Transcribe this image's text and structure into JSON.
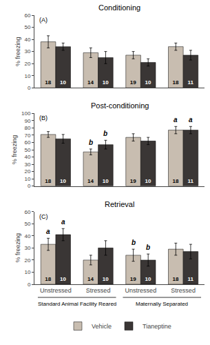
{
  "chart_data": [
    {
      "type": "bar",
      "title": "Conditioning",
      "annotations": [
        "(A)"
      ],
      "categories": [
        "Unstressed",
        "Stressed",
        "Unstressed",
        "Stressed"
      ],
      "ylabel": "% freezing",
      "ylim": [
        0,
        60
      ],
      "yticks": [
        0,
        10,
        20,
        30,
        40,
        50,
        60
      ],
      "grid": false,
      "tick_labels": "y",
      "series": [
        {
          "name": "Vehicle",
          "color": "#c8bdb0",
          "values": [
            38,
            29,
            27,
            34
          ],
          "errors": [
            5,
            4,
            3,
            3
          ],
          "n": [
            18,
            14,
            19,
            18
          ]
        },
        {
          "name": "Tianeptine",
          "color": "#3a3635",
          "values": [
            34,
            25,
            21,
            27
          ],
          "errors": [
            3,
            5,
            3,
            4
          ],
          "n": [
            10,
            10,
            10,
            11
          ]
        }
      ]
    },
    {
      "type": "bar",
      "title": "Post-conditioning",
      "annotations": [
        "(B)"
      ],
      "categories": [
        "Unstressed",
        "Stressed",
        "Unstressed",
        "Stressed"
      ],
      "ylabel": "% freezing",
      "ylim": [
        0,
        100
      ],
      "yticks": [
        0,
        10,
        20,
        30,
        40,
        50,
        60,
        70,
        80,
        90,
        100
      ],
      "grid": false,
      "tick_labels": "y",
      "series": [
        {
          "name": "Vehicle",
          "color": "#c8bdb0",
          "values": [
            71,
            47,
            67,
            77
          ],
          "errors": [
            4,
            4,
            5,
            5
          ],
          "n": [
            18,
            14,
            19,
            18
          ],
          "letters": [
            null,
            "b",
            null,
            "a"
          ]
        },
        {
          "name": "Tianeptine",
          "color": "#3a3635",
          "values": [
            65,
            57,
            62,
            77
          ],
          "errors": [
            6,
            6,
            5,
            5
          ],
          "n": [
            10,
            10,
            10,
            11
          ],
          "letters": [
            null,
            "b",
            null,
            "a"
          ]
        }
      ]
    },
    {
      "type": "bar",
      "title": "Retrieval",
      "annotations": [
        "(C)"
      ],
      "categories": [
        "Unstressed",
        "Stressed",
        "Unstressed",
        "Stressed"
      ],
      "category_groups": [
        {
          "label": "Standard Animal Facility Reared",
          "span": [
            0,
            1
          ]
        },
        {
          "label": "Maternally Separated",
          "span": [
            2,
            3
          ]
        }
      ],
      "ylabel": "% freezing",
      "ylim": [
        0,
        60
      ],
      "yticks": [
        0,
        10,
        20,
        30,
        40,
        50,
        60
      ],
      "grid": false,
      "legend": "bottom",
      "series": [
        {
          "name": "Vehicle",
          "color": "#c8bdb0",
          "values": [
            33,
            20,
            24,
            29
          ],
          "errors": [
            5,
            4,
            5,
            5
          ],
          "n": [
            18,
            14,
            19,
            18
          ],
          "letters": [
            "a",
            null,
            "b",
            null
          ]
        },
        {
          "name": "Tianeptine",
          "color": "#3a3635",
          "values": [
            41,
            30,
            20,
            27
          ],
          "errors": [
            5,
            6,
            5,
            6
          ],
          "n": [
            10,
            10,
            10,
            11
          ],
          "letters": [
            "a",
            null,
            "b",
            null
          ]
        }
      ]
    }
  ]
}
